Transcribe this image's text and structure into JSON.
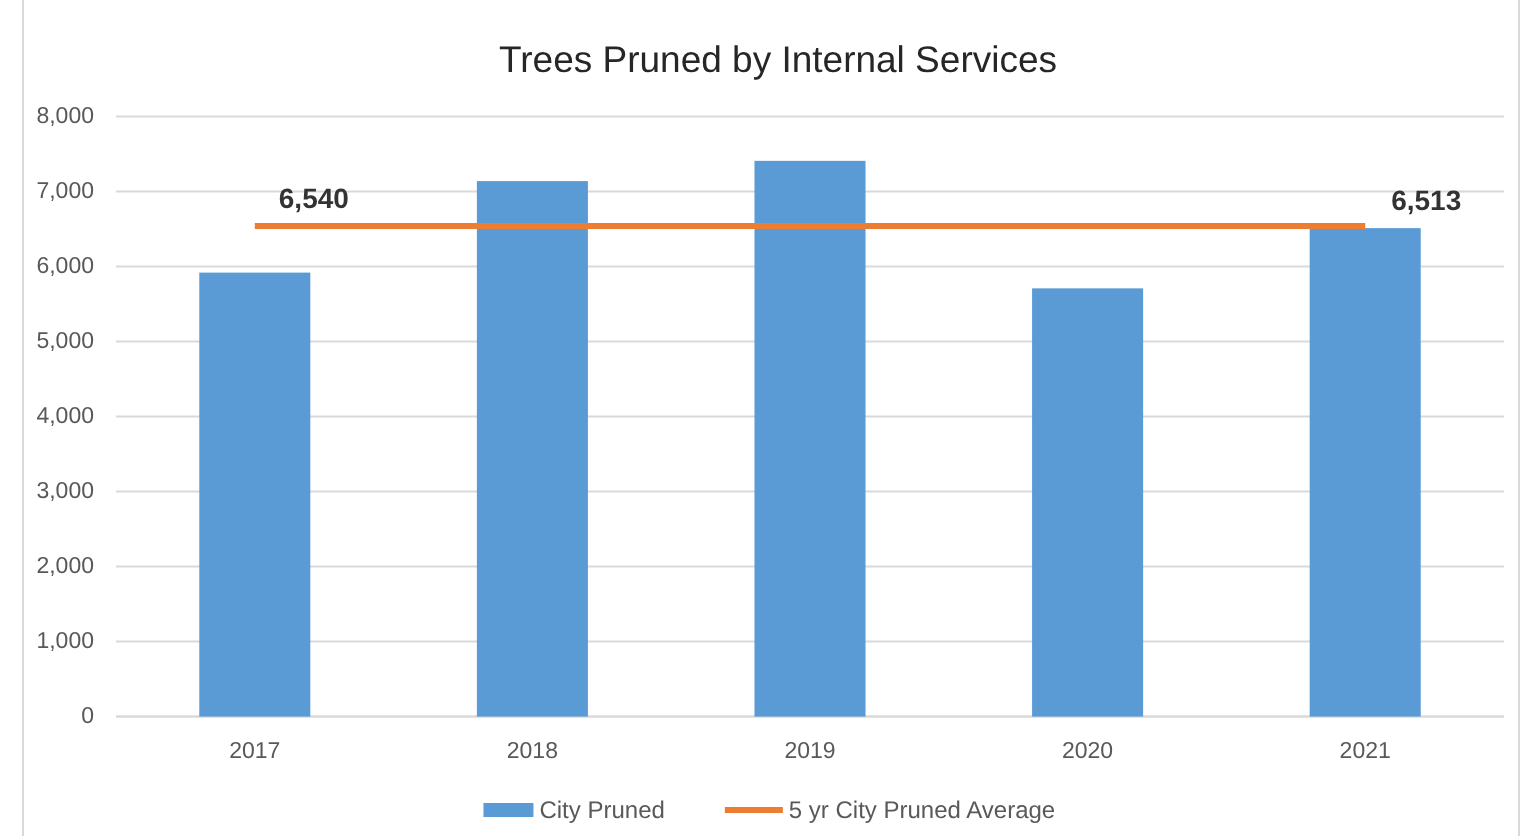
{
  "chart_data": {
    "type": "bar",
    "title": "Trees Pruned by Internal Services",
    "categories": [
      "2017",
      "2018",
      "2019",
      "2020",
      "2021"
    ],
    "series": [
      {
        "name": "City Pruned",
        "color": "#5b9bd5",
        "values": [
          5920,
          7140,
          7410,
          5710,
          6513
        ],
        "value_labels": [
          null,
          null,
          null,
          null,
          "6,513"
        ]
      },
      {
        "name": "5 yr City Pruned Average",
        "type": "line",
        "color": "#ed7d31",
        "values": [
          6540,
          6540,
          6540,
          6540,
          6540
        ],
        "value_labels": [
          "6,540",
          null,
          null,
          null,
          null
        ]
      }
    ],
    "ylim": [
      0,
      8000
    ],
    "yticks": [
      0,
      {
        "value": 1000,
        "label": "1,000"
      },
      {
        "value": 2000,
        "label": "2,000"
      },
      {
        "value": 3000,
        "label": "3,000"
      },
      {
        "value": 4000,
        "label": "4,000"
      },
      {
        "value": 5000,
        "label": "5,000"
      },
      {
        "value": 6000,
        "label": "6,000"
      },
      {
        "value": 7000,
        "label": "7,000"
      },
      {
        "value": 8000,
        "label": "8,000"
      }
    ],
    "grid": "y",
    "legend": "bottom"
  }
}
